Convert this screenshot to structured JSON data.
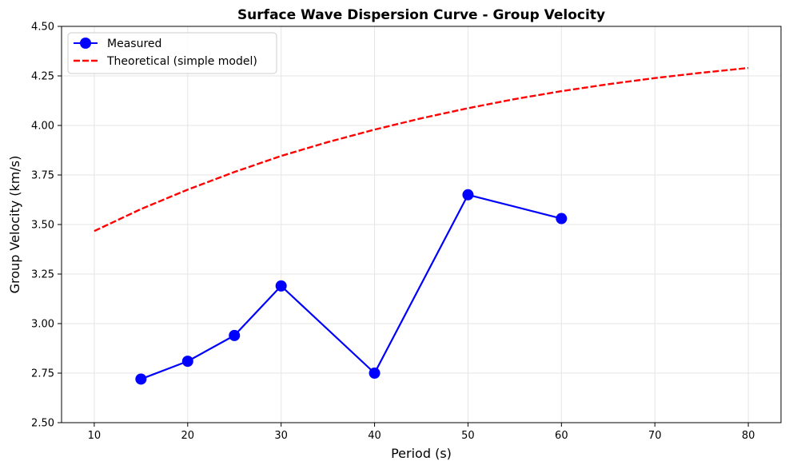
{
  "chart_data": {
    "type": "line",
    "title": "Surface Wave Dispersion Curve - Group Velocity",
    "xlabel": "Period (s)",
    "ylabel": "Group Velocity (km/s)",
    "xlim": [
      6.5,
      83.5
    ],
    "ylim": [
      2.5,
      4.5
    ],
    "xticks": [
      10,
      20,
      30,
      40,
      50,
      60,
      70,
      80
    ],
    "yticks": [
      2.5,
      2.75,
      3.0,
      3.25,
      3.5,
      3.75,
      4.0,
      4.25,
      4.5
    ],
    "xtick_labels": [
      "10",
      "20",
      "30",
      "40",
      "50",
      "60",
      "70",
      "80"
    ],
    "ytick_labels": [
      "2.50",
      "2.75",
      "3.00",
      "3.25",
      "3.50",
      "3.75",
      "4.00",
      "4.25",
      "4.50"
    ],
    "grid": true,
    "legend_position": "top-left",
    "series": [
      {
        "name": "Measured",
        "style": "solid-markers",
        "color": "#0000ff",
        "x": [
          15,
          20,
          25,
          30,
          40,
          50,
          60
        ],
        "y": [
          2.72,
          2.81,
          2.94,
          3.19,
          2.75,
          3.65,
          3.53
        ]
      },
      {
        "name": "Theoretical (simple model)",
        "style": "dashed",
        "color": "#ff0000",
        "x": [
          10,
          15,
          20,
          25,
          30,
          35,
          40,
          45,
          50,
          55,
          60,
          65,
          70,
          75,
          80
        ],
        "y": [
          3.467,
          3.578,
          3.676,
          3.765,
          3.846,
          3.916,
          3.979,
          4.036,
          4.087,
          4.133,
          4.173,
          4.208,
          4.239,
          4.266,
          4.29
        ]
      }
    ]
  }
}
